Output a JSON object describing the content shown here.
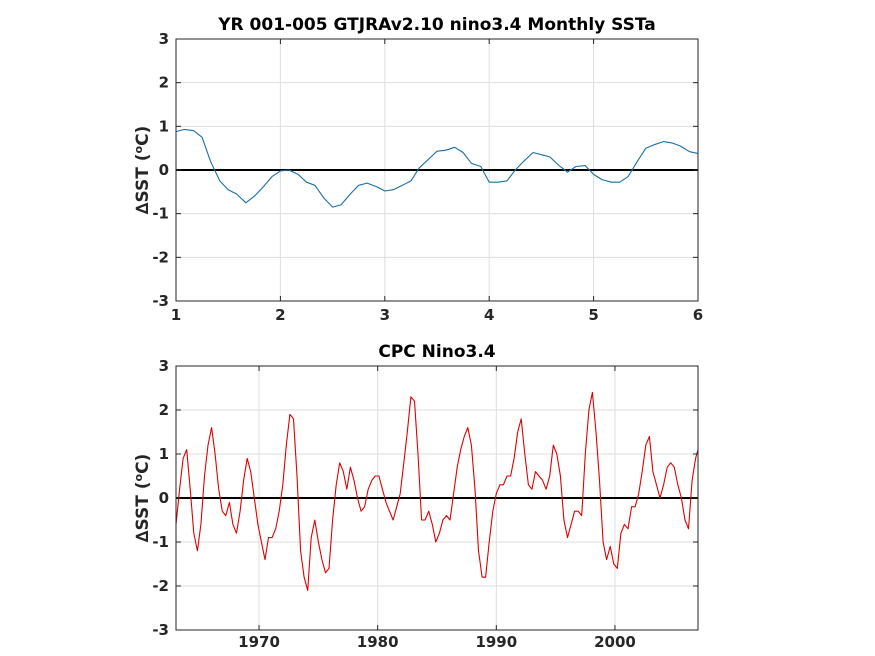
{
  "chart_data": [
    {
      "type": "line",
      "title": "YR 001-005 GTJRAv2.10 nino3.4 Monthly SSTa",
      "ylabel": "∆SST (",
      "ylabel_sup": "o",
      "ylabel_tail": "C)",
      "xlim": [
        1,
        6
      ],
      "ylim": [
        -3,
        3
      ],
      "xticks": [
        1,
        2,
        3,
        4,
        5,
        6
      ],
      "yticks": [
        -3,
        -2,
        -1,
        0,
        1,
        2,
        3
      ],
      "grid": true,
      "zero_line": true,
      "series": [
        {
          "color": "#1a6fa8",
          "x": [
            1.0,
            1.08,
            1.17,
            1.25,
            1.33,
            1.42,
            1.5,
            1.58,
            1.67,
            1.75,
            1.83,
            1.92,
            2.0,
            2.08,
            2.17,
            2.25,
            2.33,
            2.42,
            2.5,
            2.58,
            2.67,
            2.75,
            2.83,
            2.92,
            3.0,
            3.08,
            3.17,
            3.25,
            3.33,
            3.42,
            3.5,
            3.58,
            3.67,
            3.75,
            3.83,
            3.92,
            4.0,
            4.08,
            4.17,
            4.25,
            4.33,
            4.42,
            4.5,
            4.58,
            4.67,
            4.75,
            4.83,
            4.92,
            5.0,
            5.08,
            5.17,
            5.25,
            5.33,
            5.42,
            5.5,
            5.58,
            5.67,
            5.75,
            5.83,
            5.92,
            6.0
          ],
          "y": [
            0.88,
            0.93,
            0.9,
            0.75,
            0.2,
            -0.25,
            -0.45,
            -0.55,
            -0.75,
            -0.6,
            -0.4,
            -0.15,
            -0.02,
            0.0,
            -0.1,
            -0.28,
            -0.35,
            -0.65,
            -0.85,
            -0.8,
            -0.55,
            -0.35,
            -0.3,
            -0.38,
            -0.48,
            -0.45,
            -0.35,
            -0.25,
            0.05,
            0.25,
            0.43,
            0.45,
            0.52,
            0.4,
            0.15,
            0.08,
            -0.28,
            -0.28,
            -0.25,
            0.0,
            0.2,
            0.4,
            0.35,
            0.3,
            0.1,
            -0.05,
            0.08,
            0.1,
            -0.1,
            -0.22,
            -0.28,
            -0.28,
            -0.15,
            0.2,
            0.5,
            0.58,
            0.65,
            0.62,
            0.55,
            0.42,
            0.38
          ]
        }
      ]
    },
    {
      "type": "line",
      "title": "CPC Nino3.4",
      "ylabel": "∆SST (",
      "ylabel_sup": "o",
      "ylabel_tail": "C)",
      "xlim": [
        1963,
        2007
      ],
      "ylim": [
        -3,
        3
      ],
      "xticks": [
        1970,
        1980,
        1990,
        2000
      ],
      "yticks": [
        -3,
        -2,
        -1,
        0,
        1,
        2,
        3
      ],
      "grid": true,
      "zero_line": true,
      "series": [
        {
          "color": "#e00000",
          "x": [
            1963.0,
            1963.3,
            1963.6,
            1963.9,
            1964.2,
            1964.5,
            1964.8,
            1965.1,
            1965.4,
            1965.7,
            1966.0,
            1966.3,
            1966.6,
            1966.9,
            1967.2,
            1967.5,
            1967.8,
            1968.1,
            1968.4,
            1968.7,
            1969.0,
            1969.3,
            1969.6,
            1969.9,
            1970.2,
            1970.5,
            1970.8,
            1971.1,
            1971.4,
            1971.7,
            1972.0,
            1972.3,
            1972.6,
            1972.9,
            1973.2,
            1973.5,
            1973.8,
            1974.1,
            1974.4,
            1974.7,
            1975.0,
            1975.3,
            1975.6,
            1975.9,
            1976.2,
            1976.5,
            1976.8,
            1977.1,
            1977.4,
            1977.7,
            1978.0,
            1978.3,
            1978.6,
            1978.9,
            1979.2,
            1979.5,
            1979.8,
            1980.1,
            1980.4,
            1980.7,
            1981.0,
            1981.3,
            1981.6,
            1981.9,
            1982.2,
            1982.5,
            1982.8,
            1983.1,
            1983.4,
            1983.7,
            1984.0,
            1984.3,
            1984.6,
            1984.9,
            1985.2,
            1985.5,
            1985.8,
            1986.1,
            1986.4,
            1986.7,
            1987.0,
            1987.3,
            1987.6,
            1987.9,
            1988.2,
            1988.5,
            1988.8,
            1989.1,
            1989.4,
            1989.7,
            1990.0,
            1990.3,
            1990.6,
            1990.9,
            1991.2,
            1991.5,
            1991.8,
            1992.1,
            1992.4,
            1992.7,
            1993.0,
            1993.3,
            1993.6,
            1993.9,
            1994.2,
            1994.5,
            1994.8,
            1995.1,
            1995.4,
            1995.7,
            1996.0,
            1996.3,
            1996.6,
            1996.9,
            1997.2,
            1997.5,
            1997.8,
            1998.1,
            1998.4,
            1998.7,
            1999.0,
            1999.3,
            1999.6,
            1999.9,
            2000.2,
            2000.5,
            2000.8,
            2001.1,
            2001.4,
            2001.7,
            2002.0,
            2002.3,
            2002.6,
            2002.9,
            2003.2,
            2003.5,
            2003.8,
            2004.1,
            2004.4,
            2004.7,
            2005.0,
            2005.3,
            2005.6,
            2005.9,
            2006.2,
            2006.5,
            2006.8,
            2007.0
          ],
          "y": [
            -0.6,
            0.2,
            0.9,
            1.1,
            0.2,
            -0.8,
            -1.2,
            -0.6,
            0.5,
            1.2,
            1.6,
            1.0,
            0.2,
            -0.3,
            -0.4,
            -0.1,
            -0.6,
            -0.8,
            -0.3,
            0.4,
            0.9,
            0.6,
            0.0,
            -0.6,
            -1.0,
            -1.4,
            -0.9,
            -0.9,
            -0.7,
            -0.3,
            0.3,
            1.2,
            1.9,
            1.8,
            0.5,
            -1.2,
            -1.8,
            -2.1,
            -0.9,
            -0.5,
            -1.0,
            -1.4,
            -1.7,
            -1.6,
            -0.5,
            0.3,
            0.8,
            0.6,
            0.2,
            0.7,
            0.4,
            0.0,
            -0.3,
            -0.2,
            0.2,
            0.4,
            0.5,
            0.5,
            0.2,
            -0.1,
            -0.3,
            -0.5,
            -0.2,
            0.1,
            0.8,
            1.5,
            2.3,
            2.2,
            1.0,
            -0.5,
            -0.5,
            -0.3,
            -0.6,
            -1.0,
            -0.8,
            -0.5,
            -0.4,
            -0.5,
            0.1,
            0.7,
            1.1,
            1.4,
            1.6,
            1.2,
            0.2,
            -1.2,
            -1.8,
            -1.8,
            -1.0,
            -0.3,
            0.1,
            0.3,
            0.3,
            0.5,
            0.5,
            0.9,
            1.5,
            1.8,
            1.0,
            0.3,
            0.2,
            0.6,
            0.5,
            0.4,
            0.2,
            0.5,
            1.2,
            1.0,
            0.5,
            -0.5,
            -0.9,
            -0.6,
            -0.3,
            -0.3,
            -0.4,
            1.0,
            2.0,
            2.4,
            1.5,
            0.4,
            -1.0,
            -1.4,
            -1.1,
            -1.5,
            -1.6,
            -0.8,
            -0.6,
            -0.7,
            -0.2,
            -0.2,
            0.1,
            0.6,
            1.2,
            1.4,
            0.6,
            0.3,
            0.0,
            0.3,
            0.7,
            0.8,
            0.7,
            0.3,
            0.0,
            -0.5,
            -0.7,
            0.4,
            0.9,
            1.1
          ]
        }
      ]
    }
  ]
}
